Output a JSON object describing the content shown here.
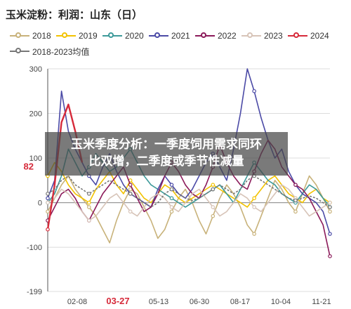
{
  "chart_data": {
    "type": "line",
    "title": "玉米淀粉：利润：山东（日）",
    "xlabel": "",
    "ylabel": "",
    "ylim": [
      -199,
      300
    ],
    "y_ticks": [
      300,
      200,
      100,
      0,
      -100,
      -199
    ],
    "y_tick_labels": [
      "300",
      "200",
      "100",
      "0",
      "-100",
      "-199"
    ],
    "x_ticks": [
      "02-08",
      "03-27",
      "05-13",
      "06-30",
      "08-17",
      "10-04",
      "11-21"
    ],
    "x_tick_labels": [
      "02-08",
      "03-27",
      "05-13",
      "06-30",
      "08-17",
      "10-04",
      "11-21"
    ],
    "x_tick_highlight": "03-27",
    "y_highlight_label": "82",
    "grid": "horizontal",
    "legend_position": "top-left",
    "series": [
      {
        "name": "2018",
        "color": "#c8b27a",
        "values": [
          -20,
          10,
          40,
          60,
          30,
          10,
          -10,
          -30,
          -60,
          -90,
          -40,
          0,
          30,
          20,
          -10,
          -40,
          -80,
          -60,
          -20,
          10,
          30,
          0,
          -40,
          -70,
          -30,
          10,
          40,
          20,
          -10,
          -50,
          -70,
          -30,
          10,
          50,
          30,
          0,
          -20,
          20,
          60,
          40,
          10,
          -20
        ]
      },
      {
        "name": "2019",
        "color": "#f2c200",
        "values": [
          60,
          90,
          70,
          40,
          20,
          10,
          0,
          30,
          50,
          70,
          40,
          20,
          50,
          30,
          10,
          0,
          20,
          40,
          30,
          10,
          0,
          10,
          20,
          30,
          40,
          30,
          20,
          10,
          0,
          -10,
          10,
          30,
          50,
          60,
          40,
          20,
          10,
          0,
          20,
          30,
          10,
          0
        ]
      },
      {
        "name": "2020",
        "color": "#3d9a9a",
        "values": [
          0,
          20,
          60,
          120,
          90,
          60,
          80,
          110,
          90,
          70,
          80,
          100,
          120,
          90,
          60,
          40,
          30,
          20,
          10,
          0,
          -10,
          0,
          10,
          20,
          30,
          40,
          20,
          0,
          30,
          60,
          90,
          70,
          50,
          40,
          20,
          10,
          0,
          20,
          40,
          30,
          10,
          -10
        ]
      },
      {
        "name": "2021",
        "color": "#4b4aa6",
        "values": [
          10,
          50,
          250,
          160,
          120,
          90,
          60,
          40,
          80,
          110,
          70,
          40,
          20,
          10,
          0,
          -10,
          30,
          60,
          40,
          20,
          10,
          30,
          60,
          90,
          110,
          80,
          50,
          120,
          200,
          300,
          250,
          190,
          140,
          100,
          120,
          70,
          40,
          20,
          10,
          0,
          -20,
          -70
        ]
      },
      {
        "name": "2022",
        "color": "#8b1a5a",
        "values": [
          -40,
          -10,
          20,
          30,
          10,
          -20,
          -40,
          -10,
          20,
          40,
          60,
          80,
          40,
          10,
          -20,
          -10,
          20,
          60,
          90,
          70,
          40,
          20,
          10,
          40,
          80,
          130,
          90,
          60,
          40,
          30,
          70,
          110,
          140,
          120,
          80,
          60,
          40,
          30,
          10,
          -20,
          -50,
          -120
        ]
      },
      {
        "name": "2023",
        "color": "#d7c4b8",
        "values": [
          0,
          10,
          30,
          20,
          0,
          -20,
          -40,
          -30,
          -10,
          10,
          20,
          0,
          -20,
          -30,
          -10,
          10,
          20,
          10,
          -10,
          -20,
          0,
          20,
          30,
          10,
          -10,
          -30,
          -20,
          0,
          20,
          10,
          -10,
          -20,
          0,
          20,
          40,
          30,
          10,
          -10,
          -30,
          -20,
          -10,
          0
        ]
      },
      {
        "name": "2024",
        "color": "#d62a3a",
        "values": [
          -60,
          40,
          180,
          220,
          160,
          90,
          null,
          null,
          null,
          null,
          null,
          null,
          null,
          null,
          null,
          null,
          null,
          null,
          null,
          null,
          null,
          null,
          null,
          null,
          null,
          null,
          null,
          null,
          null,
          null,
          null,
          null,
          null,
          null,
          null,
          null,
          null,
          null,
          null,
          null,
          null,
          null
        ]
      },
      {
        "name": "2018-2023均值",
        "color": "#777777",
        "values": [
          20,
          30,
          50,
          60,
          40,
          30,
          20,
          30,
          40,
          50,
          40,
          30,
          20,
          10,
          0,
          -10,
          0,
          20,
          30,
          20,
          10,
          5,
          10,
          20,
          30,
          40,
          30,
          20,
          30,
          50,
          60,
          50,
          40,
          30,
          20,
          10,
          5,
          10,
          15,
          10,
          0,
          -10
        ]
      }
    ]
  },
  "banner": {
    "line1": "玉米季度分析：一季度饲用需求同环",
    "line2": "比双增，二季度或季节性减量"
  }
}
